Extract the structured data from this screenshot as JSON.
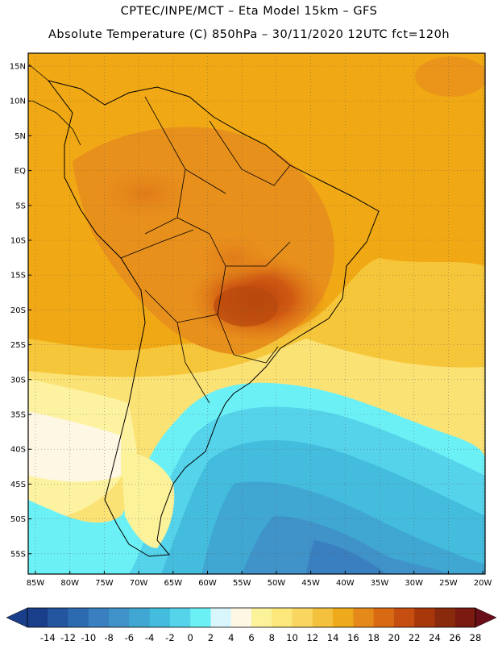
{
  "header": {
    "line1": "CPTEC/INPE/MCT –  Eta Model 15km – GFS",
    "line2": "Absolute Temperature (C) 850hPa – 30/11/2020 12UTC fct=120h"
  },
  "map": {
    "lat_labels": [
      "15N",
      "10N",
      "5N",
      "EQ",
      "5S",
      "10S",
      "15S",
      "20S",
      "25S",
      "30S",
      "35S",
      "40S",
      "45S",
      "50S",
      "55S"
    ],
    "lon_labels": [
      "85W",
      "80W",
      "75W",
      "70W",
      "65W",
      "60W",
      "55W",
      "50W",
      "45W",
      "40W",
      "35W",
      "30W",
      "25W",
      "20W"
    ]
  },
  "colorbar": {
    "ticks": [
      "-14",
      "-12",
      "-10",
      "-8",
      "-6",
      "-4",
      "-2",
      "0",
      "2",
      "4",
      "6",
      "8",
      "10",
      "12",
      "14",
      "16",
      "18",
      "20",
      "22",
      "24",
      "26",
      "28"
    ],
    "colors": [
      "#1a3f8a",
      "#2456a0",
      "#2d6bb0",
      "#3a80c0",
      "#3f93c8",
      "#40a6d2",
      "#44bcdd",
      "#55d3ea",
      "#6bf0f6",
      "#d8f6fb",
      "#fdf7e3",
      "#fcf29a",
      "#fbe77a",
      "#f9d65f",
      "#f3c13d",
      "#eeaa1a",
      "#e58a1a",
      "#d96a14",
      "#c54e10",
      "#a8380c",
      "#8a2a0c",
      "#7a1a10"
    ]
  }
}
